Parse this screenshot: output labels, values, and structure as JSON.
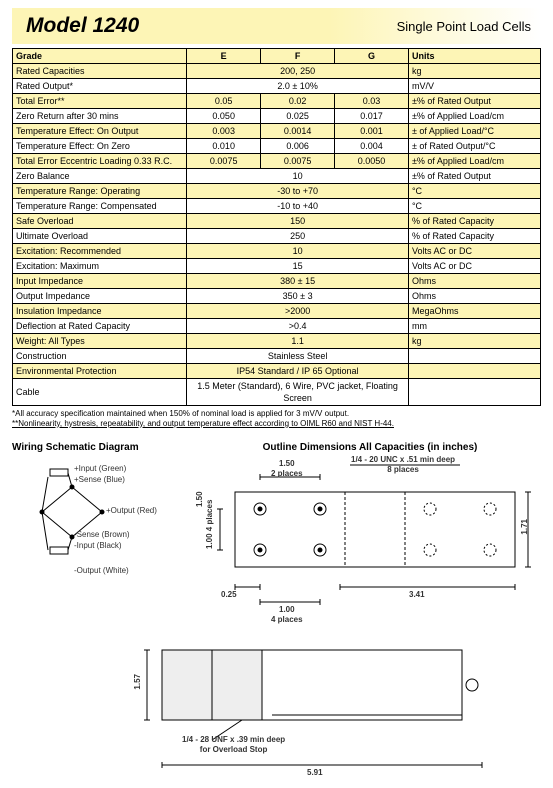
{
  "header": {
    "model": "Model 1240",
    "subtitle": "Single Point Load Cells"
  },
  "columns": {
    "grade": "Grade",
    "e": "E",
    "f": "F",
    "g": "G",
    "units": "Units"
  },
  "rows": [
    {
      "hi": true,
      "label": "Rated Capacities",
      "e": "",
      "f": "200, 250",
      "g": "",
      "span": "EFG",
      "units": "kg"
    },
    {
      "hi": false,
      "label": "Rated Output*",
      "e": "",
      "f": "2.0 ± 10%",
      "g": "",
      "span": "EFG",
      "units": "mV/V"
    },
    {
      "hi": true,
      "label": "Total Error**",
      "e": "0.05",
      "f": "0.02",
      "g": "0.03",
      "units": "±% of Rated Output"
    },
    {
      "hi": false,
      "label": "Zero Return after 30 mins",
      "e": "0.050",
      "f": "0.025",
      "g": "0.017",
      "units": "±% of Applied Load/cm"
    },
    {
      "hi": true,
      "label": "Temperature Effect: On Output",
      "e": "0.003",
      "f": "0.0014",
      "g": "0.001",
      "units": "± of Applied Load/°C"
    },
    {
      "hi": false,
      "label": "Temperature Effect: On Zero",
      "e": "0.010",
      "f": "0.006",
      "g": "0.004",
      "units": "± of Rated Output/°C"
    },
    {
      "hi": true,
      "label": "Total Error Eccentric Loading 0.33 R.C.",
      "e": "0.0075",
      "f": "0.0075",
      "g": "0.0050",
      "units": "±% of Applied Load/cm"
    },
    {
      "hi": false,
      "label": "Zero Balance",
      "e": "",
      "f": "10",
      "g": "",
      "span": "EFG",
      "units": "±% of Rated Output"
    },
    {
      "hi": true,
      "label": "Temperature Range: Operating",
      "e": "",
      "f": "-30 to +70",
      "g": "",
      "span": "EFG",
      "units": "°C"
    },
    {
      "hi": false,
      "label": "Temperature Range: Compensated",
      "e": "",
      "f": "-10 to +40",
      "g": "",
      "span": "EFG",
      "units": "°C"
    },
    {
      "hi": true,
      "label": "Safe Overload",
      "e": "",
      "f": "150",
      "g": "",
      "span": "EFG",
      "units": "% of Rated Capacity"
    },
    {
      "hi": false,
      "label": "Ultimate Overload",
      "e": "",
      "f": "250",
      "g": "",
      "span": "EFG",
      "units": "% of Rated Capacity"
    },
    {
      "hi": true,
      "label": "Excitation: Recommended",
      "e": "",
      "f": "10",
      "g": "",
      "span": "EFG",
      "units": "Volts AC or DC"
    },
    {
      "hi": false,
      "label": "Excitation: Maximum",
      "e": "",
      "f": "15",
      "g": "",
      "span": "EFG",
      "units": "Volts AC or DC"
    },
    {
      "hi": true,
      "label": "Input Impedance",
      "e": "",
      "f": "380 ± 15",
      "g": "",
      "span": "EFG",
      "units": "Ohms"
    },
    {
      "hi": false,
      "label": "Output Impedance",
      "e": "",
      "f": "350 ± 3",
      "g": "",
      "span": "EFG",
      "units": "Ohms"
    },
    {
      "hi": true,
      "label": "Insulation Impedance",
      "e": "",
      "f": ">2000",
      "g": "",
      "span": "EFG",
      "units": "MegaOhms"
    },
    {
      "hi": false,
      "label": "Deflection at Rated Capacity",
      "e": "",
      "f": ">0.4",
      "g": "",
      "span": "EFG",
      "units": "mm"
    },
    {
      "hi": true,
      "label": "Weight: All Types",
      "e": "",
      "f": "1.1",
      "g": "",
      "span": "EFG",
      "units": "kg"
    },
    {
      "hi": false,
      "label": "Construction",
      "e": "",
      "f": "Stainless Steel",
      "g": "",
      "span": "EFG",
      "units": ""
    },
    {
      "hi": true,
      "label": "Environmental Protection",
      "e": "",
      "f": "IP54 Standard / IP 65 Optional",
      "g": "",
      "span": "EFG",
      "units": ""
    },
    {
      "hi": false,
      "label": "Cable",
      "e": "",
      "f": "1.5 Meter (Standard), 6 Wire, PVC jacket, Floating Screen",
      "g": "",
      "span": "EFG",
      "units": ""
    }
  ],
  "footnotes": [
    "*All accuracy specification maintained when 150% of nominal load is applied for 3 mV/V output.",
    "**Nonlinearity, hystresis, repeatability, and output temperature effect according to OIML R60 and NIST H-44."
  ],
  "sections": {
    "wiring_title": "Wiring Schematic Diagram",
    "outline_title": "Outline Dimensions All Capacities (in inches)"
  },
  "wiring": {
    "inputs": [
      "+Input (Green)",
      "+Sense (Blue)",
      "+Output (Red)"
    ],
    "outputs": [
      "-Sense (Brown)",
      "-Input (Black)",
      "-Output (White)"
    ]
  },
  "dimensions": {
    "top": {
      "d1": "1.50",
      "d1_note": "2 places",
      "thread1": "1/4 - 20 UNC x .51 min deep",
      "thread1_note": "8 places",
      "d2": "1.50",
      "d3": "1.00",
      "d3_note": "4 places",
      "d4": "0.25",
      "d5": "1.00",
      "d5_note": "4 places",
      "d6": "3.41",
      "height": "1.71"
    },
    "bottom": {
      "height": "1.57",
      "thread": "1/4 - 28 UNF x .39 min deep",
      "thread_note": "for Overload Stop",
      "length": "5.91"
    }
  }
}
